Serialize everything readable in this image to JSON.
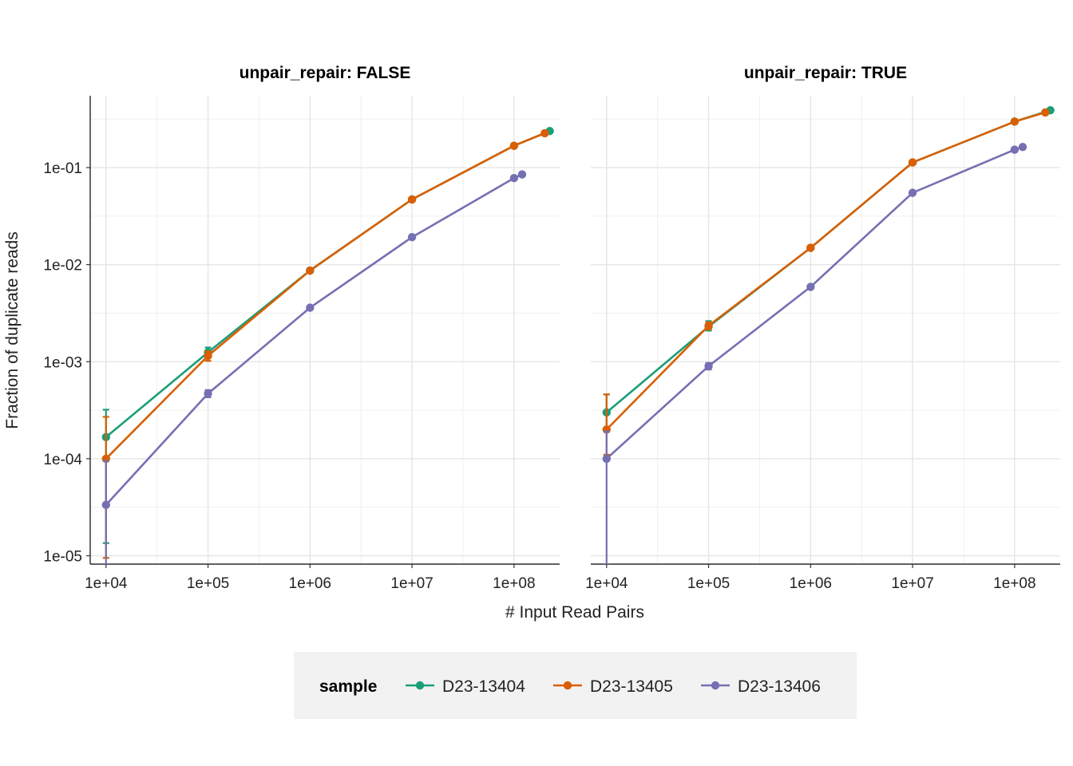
{
  "chart_data": {
    "type": "line",
    "scale": {
      "x": "log10",
      "y": "log10"
    },
    "xlabel": "# Input Read Pairs",
    "ylabel": "Fraction of duplicate reads",
    "x_ticks": [
      10000,
      100000,
      1000000,
      10000000,
      100000000
    ],
    "x_tick_labels": [
      "1e+04",
      "1e+05",
      "1e+06",
      "1e+07",
      "1e+08"
    ],
    "y_ticks": [
      1e-05,
      0.0001,
      0.001,
      0.01,
      0.1
    ],
    "y_tick_labels": [
      "1e-05",
      "1e-04",
      "1e-03",
      "1e-02",
      "1e-01"
    ],
    "xlim": [
      7000,
      280000000
    ],
    "ylim": [
      8.2e-06,
      0.55
    ],
    "grid": true,
    "legend": {
      "title": "sample",
      "position": "bottom",
      "entries": [
        {
          "name": "D23-13404",
          "color": "#1B9E77"
        },
        {
          "name": "D23-13405",
          "color": "#D95F02"
        },
        {
          "name": "D23-13406",
          "color": "#7570B3"
        }
      ]
    },
    "panels": [
      {
        "title": "unpair_repair: FALSE",
        "series": [
          {
            "name": "D23-13404",
            "color": "#1B9E77",
            "points": [
              {
                "x": 10000,
                "y": 0.000167,
                "ymin": 1.35e-05,
                "ymax": 0.00032
              },
              {
                "x": 100000,
                "y": 0.00125,
                "ymin": 0.00112,
                "ymax": 0.0014
              },
              {
                "x": 1000000,
                "y": 0.0087
              },
              {
                "x": 10000000,
                "y": 0.047
              },
              {
                "x": 100000000,
                "y": 0.168
              },
              {
                "x": 224000000,
                "y": 0.238
              }
            ]
          },
          {
            "name": "D23-13405",
            "color": "#D95F02",
            "points": [
              {
                "x": 10000,
                "y": 0.0001,
                "ymin": 9.5e-06,
                "ymax": 0.00027
              },
              {
                "x": 100000,
                "y": 0.00115,
                "ymin": 0.00102,
                "ymax": 0.00128
              },
              {
                "x": 1000000,
                "y": 0.0087
              },
              {
                "x": 10000000,
                "y": 0.047
              },
              {
                "x": 100000000,
                "y": 0.168
              },
              {
                "x": 200000000,
                "y": 0.226
              }
            ]
          },
          {
            "name": "D23-13406",
            "color": "#7570B3",
            "points": [
              {
                "x": 10000,
                "y": 3.35e-05,
                "ymin": 8.2e-06,
                "ymax": 9.5e-05
              },
              {
                "x": 100000,
                "y": 0.00047,
                "ymin": 0.00043,
                "ymax": 0.00051
              },
              {
                "x": 1000000,
                "y": 0.0036
              },
              {
                "x": 10000000,
                "y": 0.0192
              },
              {
                "x": 100000000,
                "y": 0.078
              },
              {
                "x": 120000000,
                "y": 0.085
              }
            ]
          }
        ]
      },
      {
        "title": "unpair_repair: TRUE",
        "series": [
          {
            "name": "D23-13404",
            "color": "#1B9E77",
            "points": [
              {
                "x": 10000,
                "y": 0.0003,
                "ymin": 0.00019,
                "ymax": 0.00046
              },
              {
                "x": 100000,
                "y": 0.0023,
                "ymin": 0.00209,
                "ymax": 0.00262
              },
              {
                "x": 1000000,
                "y": 0.0149
              },
              {
                "x": 10000000,
                "y": 0.113
              },
              {
                "x": 100000000,
                "y": 0.298
              },
              {
                "x": 224000000,
                "y": 0.39
              }
            ]
          },
          {
            "name": "D23-13405",
            "color": "#D95F02",
            "points": [
              {
                "x": 10000,
                "y": 0.0002,
                "ymin": 0.00011,
                "ymax": 0.00046
              },
              {
                "x": 100000,
                "y": 0.00235,
                "ymin": 0.00215,
                "ymax": 0.00255
              },
              {
                "x": 1000000,
                "y": 0.0149
              },
              {
                "x": 10000000,
                "y": 0.113
              },
              {
                "x": 100000000,
                "y": 0.298
              },
              {
                "x": 200000000,
                "y": 0.37
              }
            ]
          },
          {
            "name": "D23-13406",
            "color": "#7570B3",
            "points": [
              {
                "x": 10000,
                "y": 0.0001,
                "ymin": 8.2e-06,
                "ymax": 0.00019
              },
              {
                "x": 100000,
                "y": 0.0009,
                "ymin": 0.00083,
                "ymax": 0.00097
              },
              {
                "x": 1000000,
                "y": 0.0059
              },
              {
                "x": 10000000,
                "y": 0.055
              },
              {
                "x": 100000000,
                "y": 0.153
              },
              {
                "x": 120000000,
                "y": 0.163
              }
            ]
          }
        ]
      }
    ]
  }
}
